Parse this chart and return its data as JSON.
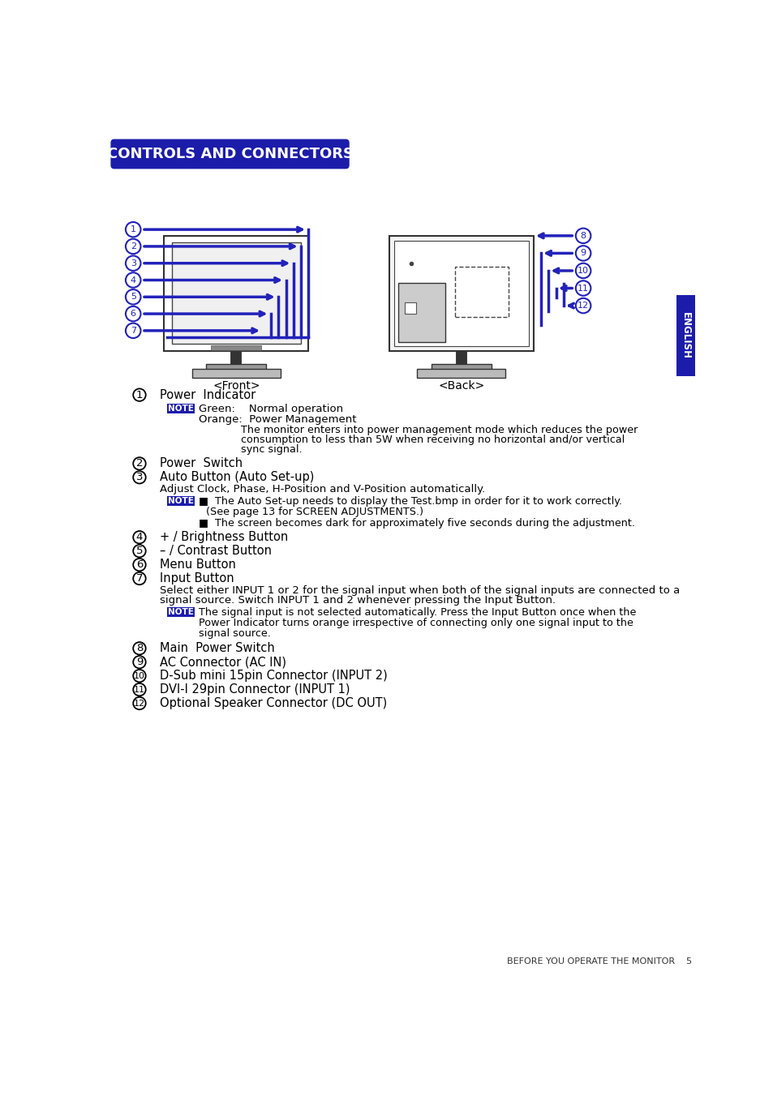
{
  "title": "CONTROLS AND CONNECTORS",
  "title_bg": "#1c1caa",
  "title_fg": "#ffffff",
  "page_bg": "#ffffff",
  "note_bg": "#1c1caa",
  "note_fg": "#ffffff",
  "arrow_color": "#2222bb",
  "footer": "BEFORE YOU OPERATE THE MONITOR    5"
}
